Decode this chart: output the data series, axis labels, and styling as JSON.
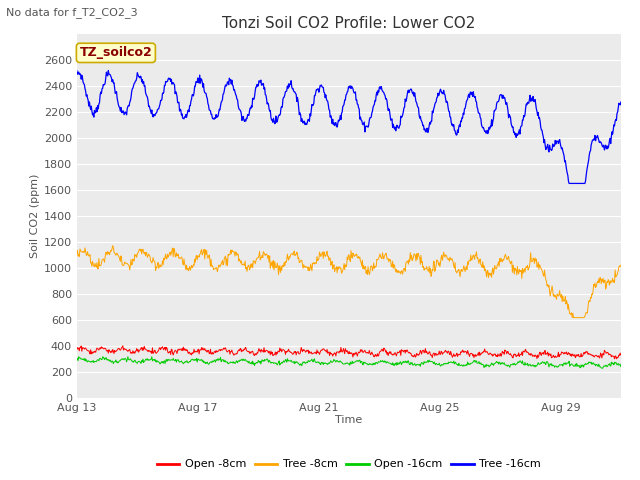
{
  "title": "Tonzi Soil CO2 Profile: Lower CO2",
  "no_data_text": "No data for f_T2_CO2_3",
  "ylabel": "Soil CO2 (ppm)",
  "xlabel": "Time",
  "ylim": [
    0,
    2800
  ],
  "yticks": [
    0,
    200,
    400,
    600,
    800,
    1000,
    1200,
    1400,
    1600,
    1800,
    2000,
    2200,
    2400,
    2600
  ],
  "xtick_labels": [
    "Aug 13",
    "Aug 17",
    "Aug 21",
    "Aug 25",
    "Aug 29"
  ],
  "tick_days": [
    0,
    4,
    8,
    12,
    16
  ],
  "n_days": 18,
  "pts_per_day": 48,
  "plot_bg_color": "#ebebeb",
  "grid_color": "#ffffff",
  "legend_items": [
    {
      "label": "Open -8cm",
      "color": "#ff0000"
    },
    {
      "label": "Tree -8cm",
      "color": "#ffa500"
    },
    {
      "label": "Open -16cm",
      "color": "#00cc00"
    },
    {
      "label": "Tree -16cm",
      "color": "#0000ff"
    }
  ],
  "annotation": {
    "text": "TZ_soilco2",
    "bg": "#ffffcc",
    "border": "#ccaa00",
    "text_color": "#8B0000"
  },
  "colors": {
    "open8": "#ff0000",
    "tree8": "#ffa500",
    "open16": "#00cc00",
    "tree16": "#0000ff"
  },
  "title_fontsize": 11,
  "axis_fontsize": 8,
  "tick_fontsize": 8,
  "legend_fontsize": 8
}
